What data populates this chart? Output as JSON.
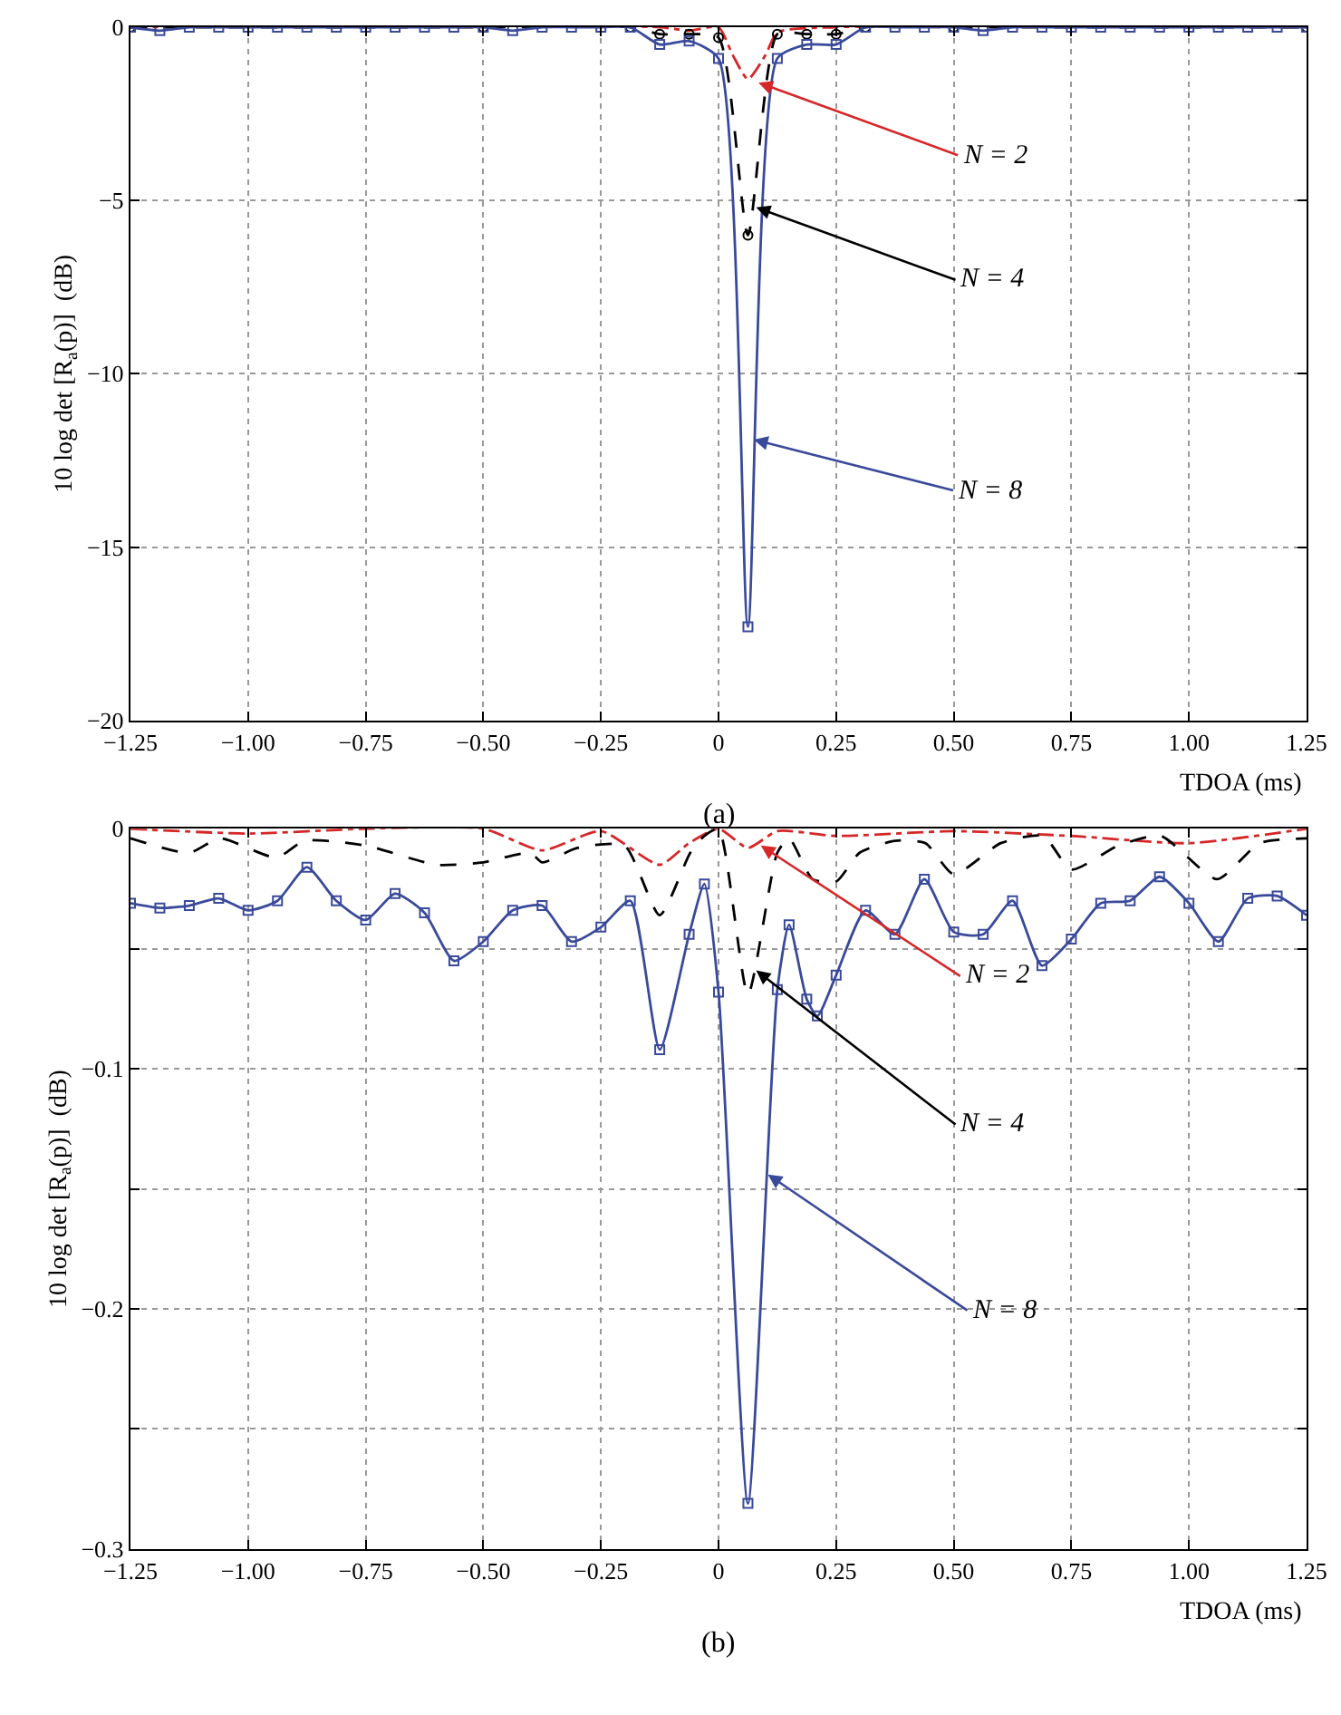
{
  "chart_data": [
    {
      "type": "line",
      "title": "(a)",
      "xlabel": "TDOA (ms)",
      "ylabel": "10 log det [R$_{a}$(p)]  (dB)",
      "grid": true,
      "xlim": [
        -1.25,
        1.25
      ],
      "xticks": [
        {
          "value": -1.25,
          "label": "−1.25"
        },
        {
          "value": -1.0,
          "label": "−1.00"
        },
        {
          "value": -0.75,
          "label": "−0.75"
        },
        {
          "value": -0.5,
          "label": "−0.50"
        },
        {
          "value": -0.25,
          "label": "−0.25"
        },
        0,
        {
          "value": 0.25,
          "label": "0.25"
        },
        {
          "value": 0.5,
          "label": "0.50"
        },
        {
          "value": 0.75,
          "label": "0.75"
        },
        {
          "value": 1.0,
          "label": "1.00"
        },
        {
          "value": 1.25,
          "label": "1.25"
        }
      ],
      "ylim": [
        -20,
        0
      ],
      "yticks": [
        -20,
        -15,
        -10,
        -5,
        0
      ],
      "series": [
        {
          "color": "#d62728",
          "marker": "none",
          "line_style": "dashdot",
          "x": [
            -1.25,
            -0.125,
            -0.0625,
            0,
            0.03,
            0.0625,
            0.1,
            0.125,
            0.25,
            1.25
          ],
          "values": [
            0,
            0,
            -0.1,
            0,
            -0.8,
            -1.5,
            -0.8,
            -0.15,
            0,
            0
          ]
        },
        {
          "color": "#000000",
          "marker": "circle",
          "line_style": "dashed",
          "x": [
            -1.25,
            -0.5,
            -0.1875,
            -0.125,
            -0.0625,
            0,
            0.0625,
            0.125,
            0.1875,
            0.25,
            0.3125,
            0.5,
            1.25
          ],
          "values": [
            0,
            0,
            0,
            -0.2,
            -0.2,
            -0.3,
            -6.0,
            -0.2,
            -0.2,
            -0.2,
            0,
            0,
            0
          ]
        },
        {
          "color": "#3a4a9a",
          "marker": "square",
          "line_style": "solid",
          "x": [
            -1.25,
            -1.1875,
            -1.125,
            -1.0625,
            -1.0,
            -0.9375,
            -0.875,
            -0.8125,
            -0.75,
            -0.6875,
            -0.625,
            -0.5625,
            -0.5,
            -0.4375,
            -0.375,
            -0.3125,
            -0.25,
            -0.1875,
            -0.125,
            -0.0625,
            0,
            0.0625,
            0.125,
            0.1875,
            0.25,
            0.3125,
            0.375,
            0.4375,
            0.5,
            0.5625,
            0.625,
            0.6875,
            0.75,
            0.8125,
            0.875,
            0.9375,
            1.0,
            1.0625,
            1.125,
            1.1875,
            1.25
          ],
          "values": [
            0,
            -0.1,
            0,
            0,
            0,
            0,
            0,
            0,
            0,
            0,
            0,
            0,
            0,
            -0.1,
            0,
            0,
            0,
            0,
            -0.5,
            -0.4,
            -0.9,
            -17.3,
            -0.9,
            -0.5,
            -0.5,
            0,
            0,
            0,
            0,
            -0.1,
            0,
            0,
            0,
            0,
            0,
            0,
            0,
            0,
            0,
            0,
            0
          ]
        }
      ],
      "annotations": [
        {
          "text": "N = 2",
          "x": 0.085,
          "y": -1.6
        },
        {
          "text": "N = 4",
          "x": 0.08,
          "y": -5.2
        },
        {
          "text": "N = 8",
          "x": 0.075,
          "y": -11.9
        }
      ]
    },
    {
      "type": "line",
      "title": "(b)",
      "xlabel": "TDOA (ms)",
      "ylabel": "10 log det [R$_{a}$(p)]  (dB)",
      "grid": true,
      "xlim": [
        -1.25,
        1.25
      ],
      "xticks": [
        {
          "value": -1.25,
          "label": "−1.25"
        },
        {
          "value": -1.0,
          "label": "−1.00"
        },
        {
          "value": -0.75,
          "label": "−0.75"
        },
        {
          "value": -0.5,
          "label": "−0.50"
        },
        {
          "value": -0.25,
          "label": "−0.25"
        },
        0,
        {
          "value": 0.25,
          "label": "0.25"
        },
        {
          "value": 0.5,
          "label": "0.50"
        },
        {
          "value": 0.75,
          "label": "0.75"
        },
        {
          "value": 1.0,
          "label": "1.00"
        },
        {
          "value": 1.25,
          "label": "1.25"
        }
      ],
      "ylim": [
        -0.3,
        0
      ],
      "yticks": [
        -0.3,
        {
          "value": -0.25,
          "label": null
        },
        -0.2,
        {
          "value": -0.15,
          "label": null
        },
        -0.1,
        {
          "value": -0.05,
          "label": null
        },
        0
      ],
      "series": [
        {
          "color": "#d62728",
          "marker": "none",
          "line_style": "dashdot",
          "x": [
            -1.25,
            -1.0,
            -0.75,
            -0.5,
            -0.375,
            -0.25,
            -0.125,
            -0.0625,
            0,
            0.0625,
            0.125,
            0.25,
            0.5,
            0.75,
            1.0,
            1.25
          ],
          "values": [
            0,
            -0.002,
            0,
            0,
            -0.009,
            -0.001,
            -0.015,
            -0.006,
            0,
            -0.008,
            -0.001,
            -0.003,
            -0.001,
            -0.003,
            -0.006,
            0
          ]
        },
        {
          "color": "#000000",
          "marker": "none",
          "line_style": "dashed",
          "x": [
            -1.25,
            -1.125,
            -1.06,
            -0.94,
            -0.88,
            -0.75,
            -0.6,
            -0.5,
            -0.4,
            -0.375,
            -0.3,
            -0.2,
            -0.125,
            -0.06,
            -0.03,
            0,
            0.0625,
            0.125,
            0.15,
            0.2,
            0.25,
            0.3,
            0.375,
            0.44,
            0.5,
            0.6,
            0.69,
            0.75,
            0.85,
            0.94,
            1.06,
            1.15,
            1.25
          ],
          "values": [
            -0.004,
            -0.01,
            -0.004,
            -0.012,
            -0.005,
            -0.007,
            -0.015,
            -0.014,
            -0.01,
            -0.014,
            -0.008,
            -0.007,
            -0.036,
            -0.01,
            -0.003,
            0,
            -0.069,
            -0.01,
            -0.004,
            -0.021,
            -0.022,
            -0.01,
            -0.005,
            -0.006,
            -0.019,
            -0.006,
            -0.003,
            -0.017,
            -0.007,
            -0.003,
            -0.021,
            -0.006,
            -0.004
          ]
        },
        {
          "color": "#3a4a9a",
          "marker": "square",
          "line_style": "solid",
          "x": [
            -1.25,
            -1.1875,
            -1.125,
            -1.0625,
            -1.0,
            -0.9375,
            -0.875,
            -0.8125,
            -0.75,
            -0.6875,
            -0.625,
            -0.5625,
            -0.5,
            -0.4375,
            -0.375,
            -0.3125,
            -0.25,
            -0.1875,
            -0.125,
            -0.0625,
            -0.03,
            0,
            0.0625,
            0.125,
            0.15,
            0.1875,
            0.21,
            0.25,
            0.3125,
            0.375,
            0.4375,
            0.5,
            0.5625,
            0.625,
            0.6875,
            0.75,
            0.8125,
            0.875,
            0.9375,
            1.0,
            1.0625,
            1.125,
            1.1875,
            1.25
          ],
          "values": [
            -0.031,
            -0.033,
            -0.032,
            -0.029,
            -0.034,
            -0.03,
            -0.016,
            -0.03,
            -0.038,
            -0.027,
            -0.035,
            -0.055,
            -0.047,
            -0.034,
            -0.032,
            -0.047,
            -0.041,
            -0.03,
            -0.092,
            -0.044,
            -0.023,
            -0.068,
            -0.281,
            -0.067,
            -0.04,
            -0.071,
            -0.078,
            -0.061,
            -0.034,
            -0.044,
            -0.021,
            -0.043,
            -0.044,
            -0.03,
            -0.057,
            -0.046,
            -0.031,
            -0.03,
            -0.02,
            -0.031,
            -0.047,
            -0.029,
            -0.028,
            -0.036
          ]
        }
      ],
      "annotations": [
        {
          "text": "N = 2",
          "x": 0.09,
          "y": -0.007
        },
        {
          "text": "N = 4",
          "x": 0.08,
          "y": -0.059
        },
        {
          "text": "N = 8",
          "x": 0.105,
          "y": -0.144
        }
      ]
    }
  ]
}
